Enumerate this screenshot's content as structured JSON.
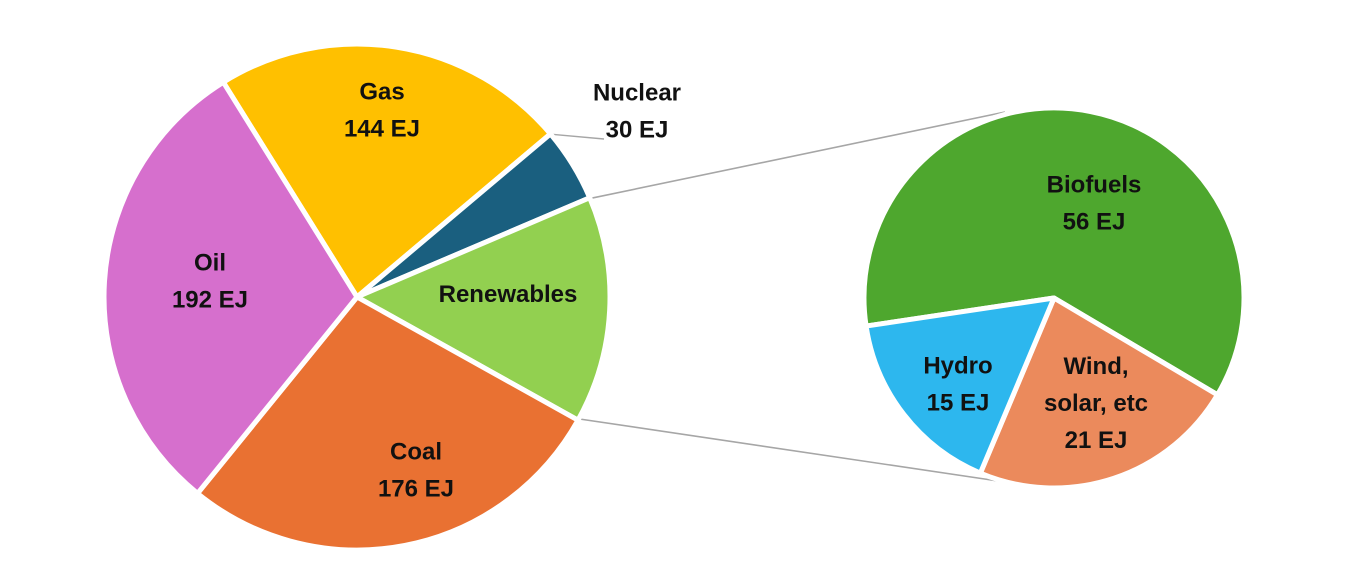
{
  "chart_data": {
    "type": "pie",
    "title": "",
    "units": "EJ",
    "main_pie": {
      "slices": [
        {
          "name": "Gas",
          "value": 144,
          "value_label": "144 EJ",
          "color": "#FFC000"
        },
        {
          "name": "Nuclear",
          "value": 30,
          "value_label": "30 EJ",
          "color": "#1A5F7F"
        },
        {
          "name": "Renewables",
          "value": 92,
          "value_label": "",
          "color": "#92D050"
        },
        {
          "name": "Coal",
          "value": 176,
          "value_label": "176 EJ",
          "color": "#E97132"
        },
        {
          "name": "Oil",
          "value": 192,
          "value_label": "192 EJ",
          "color": "#D66FCD"
        }
      ]
    },
    "breakdown_pie": {
      "parent": "Renewables",
      "slices": [
        {
          "name": "Biofuels",
          "value": 56,
          "value_label": "56 EJ",
          "color": "#4EA72E"
        },
        {
          "name": "Wind, solar, etc",
          "value": 21,
          "value_label": "21 EJ",
          "color": "#EB8A5C"
        },
        {
          "name": "Hydro",
          "value": 15,
          "value_label": "15 EJ",
          "color": "#2DB7EE"
        }
      ]
    }
  }
}
